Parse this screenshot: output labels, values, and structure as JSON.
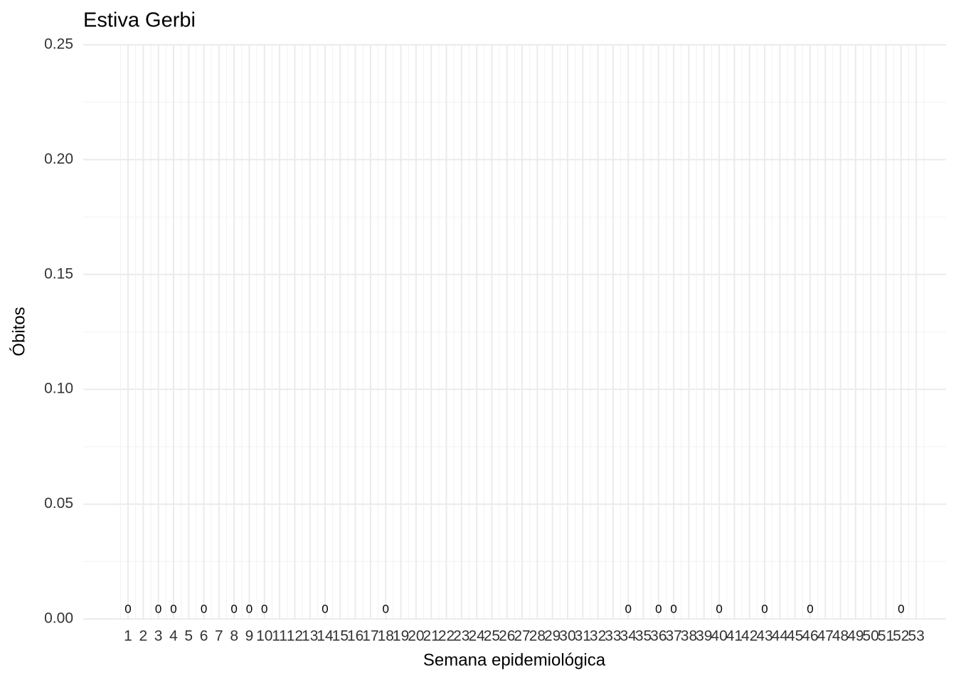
{
  "chart_data": {
    "type": "bar",
    "title": "Estiva Gerbi",
    "x_label": "Semana epidemiológica",
    "y_label": "Óbitos",
    "categories": [
      "1",
      "2",
      "3",
      "4",
      "5",
      "6",
      "7",
      "8",
      "9",
      "10",
      "11",
      "12",
      "13",
      "14",
      "15",
      "16",
      "17",
      "18",
      "19",
      "20",
      "21",
      "22",
      "23",
      "24",
      "25",
      "26",
      "27",
      "28",
      "29",
      "30",
      "31",
      "32",
      "33",
      "34",
      "35",
      "36",
      "37",
      "38",
      "39",
      "40",
      "41",
      "42",
      "43",
      "44",
      "45",
      "46",
      "47",
      "48",
      "49",
      "50",
      "51",
      "52",
      "53"
    ],
    "values": [
      0,
      null,
      0,
      0,
      null,
      0,
      null,
      0,
      0,
      0,
      null,
      null,
      null,
      0,
      null,
      null,
      null,
      0,
      null,
      null,
      null,
      null,
      null,
      null,
      null,
      null,
      null,
      null,
      null,
      null,
      null,
      null,
      null,
      0,
      null,
      0,
      0,
      null,
      null,
      0,
      null,
      null,
      0,
      null,
      null,
      0,
      null,
      null,
      null,
      null,
      null,
      0,
      null
    ],
    "color": "#595959",
    "ylim": [
      0,
      0.25
    ],
    "yticks": [
      {
        "value": 0,
        "label": "0.00"
      },
      {
        "value": 0.05,
        "label": "0.05"
      },
      {
        "value": 0.1,
        "label": "0.10"
      },
      {
        "value": 0.15,
        "label": "0.15"
      },
      {
        "value": 0.2,
        "label": "0.20"
      },
      {
        "value": 0.25,
        "label": "0.25"
      }
    ],
    "grid": true
  }
}
